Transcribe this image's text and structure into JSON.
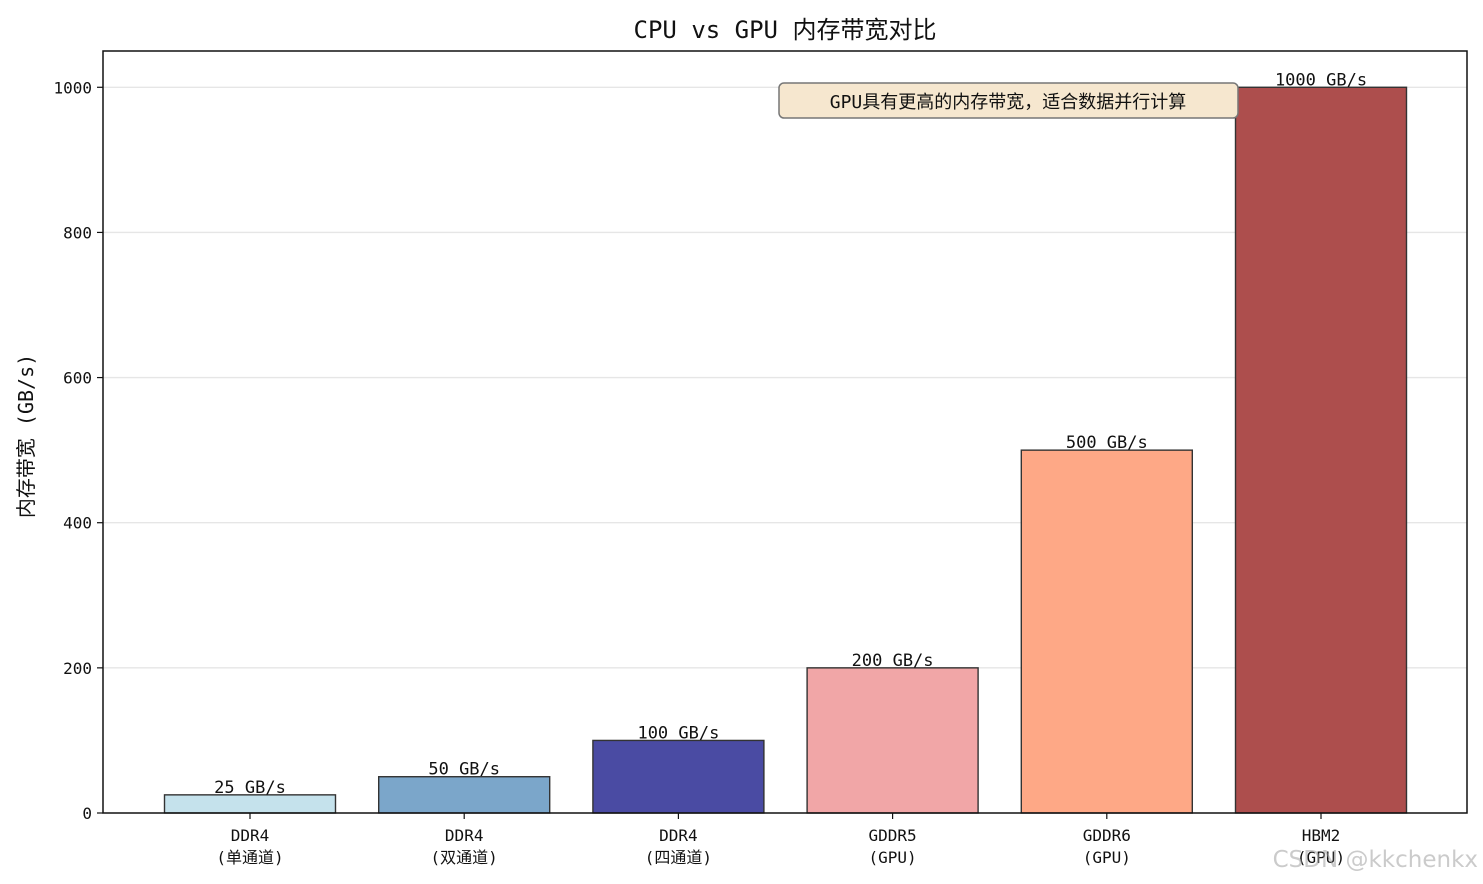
{
  "chart_data": {
    "type": "bar",
    "title": "CPU vs GPU 内存带宽对比",
    "xlabel": "",
    "ylabel": "内存带宽 (GB/s)",
    "categories": [
      [
        "DDR4",
        "(单通道)"
      ],
      [
        "DDR4",
        "(双通道)"
      ],
      [
        "DDR4",
        "(四通道)"
      ],
      [
        "GDDR5",
        "(GPU)"
      ],
      [
        "GDDR6",
        "(GPU)"
      ],
      [
        "HBM2",
        "(GPU)"
      ]
    ],
    "values": [
      25,
      50,
      100,
      200,
      500,
      1000
    ],
    "value_labels": [
      "25 GB/s",
      "50 GB/s",
      "100 GB/s",
      "200 GB/s",
      "500 GB/s",
      "1000 GB/s"
    ],
    "colors": [
      "#c5e2ec",
      "#7ba6ca",
      "#4a4ba3",
      "#f1a6a7",
      "#fea886",
      "#ad4e4d"
    ],
    "ylim": [
      0,
      1050
    ],
    "yticks": [
      0,
      200,
      400,
      600,
      800,
      1000
    ],
    "grid": "y",
    "annotation": "GPU具有更高的内存带宽，适合数据并行计算"
  },
  "watermark": "CSDN @kkchenkx"
}
